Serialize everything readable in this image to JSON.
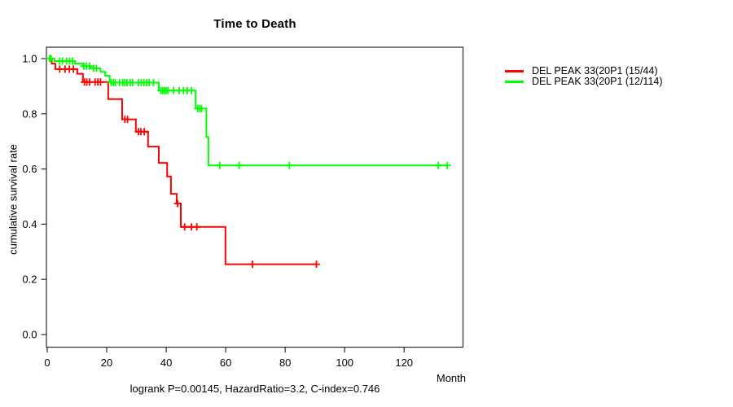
{
  "chart_data": {
    "type": "line",
    "kind": "kaplan-meier-step",
    "title": "Time to Death",
    "xlabel": "Month",
    "ylabel": "cumulative survival rate",
    "footnote": "logrank P=0.00145, HazardRatio=3.2, C-index=0.746",
    "xtick_values": [
      0,
      20,
      40,
      60,
      80,
      100,
      120
    ],
    "xtick_labels": [
      "0",
      "20",
      "40",
      "60",
      "80",
      "100",
      "120"
    ],
    "ytick_values": [
      0,
      0.2,
      0.4,
      0.6,
      0.8,
      1
    ],
    "ytick_labels": [
      "0.0",
      "0.2",
      "0.4",
      "0.6",
      "0.8",
      "1.0"
    ],
    "xlim": [
      0,
      140
    ],
    "ylim": [
      -0.04,
      1.03
    ],
    "grid": false,
    "legend_position": "right-top-outside",
    "axis_color": "#2b2b2b",
    "series": [
      {
        "name": "DEL PEAK 33(20P1 (15/44)",
        "color": "#ff0000",
        "steps": [
          [
            0,
            1.0
          ],
          [
            1.5,
            0.982
          ],
          [
            2.7,
            0.962
          ],
          [
            10.1,
            0.945
          ],
          [
            12,
            0.915
          ],
          [
            20.5,
            0.853
          ],
          [
            25.2,
            0.78
          ],
          [
            29.8,
            0.735
          ],
          [
            33.9,
            0.681
          ],
          [
            37.5,
            0.622
          ],
          [
            40.3,
            0.573
          ],
          [
            41.6,
            0.51
          ],
          [
            43.5,
            0.475
          ],
          [
            44.9,
            0.39
          ],
          [
            59.9,
            0.255
          ]
        ],
        "end_month": 90.5,
        "censor_months": [
          4.2,
          6.0,
          7.4,
          8.8,
          12.5,
          13.3,
          14.2,
          16.1,
          17.0,
          17.9,
          26.1,
          27.0,
          30.7,
          31.5,
          32.6,
          43.8,
          46.2,
          48.5,
          50.3,
          69.0,
          90.5
        ]
      },
      {
        "name": "DEL PEAK 33(20P1 (12/114)",
        "color": "#00ff00",
        "steps": [
          [
            0,
            1.0
          ],
          [
            2.4,
            0.991
          ],
          [
            9.2,
            0.982
          ],
          [
            12,
            0.973
          ],
          [
            14.7,
            0.965
          ],
          [
            17.9,
            0.952
          ],
          [
            19.5,
            0.938
          ],
          [
            21,
            0.913
          ],
          [
            37.5,
            0.884
          ],
          [
            49.9,
            0.819
          ],
          [
            53.5,
            0.716
          ],
          [
            54.2,
            0.613
          ]
        ],
        "end_month": 134.5,
        "censor_months": [
          0.8,
          1.3,
          4.2,
          5.1,
          6.5,
          7.5,
          8.5,
          12.3,
          13.2,
          14.2,
          15.6,
          16.5,
          21.5,
          22.3,
          22.9,
          24.3,
          25.4,
          26.1,
          26.8,
          27.9,
          28.7,
          30.7,
          31.6,
          32.5,
          33.4,
          34.3,
          35.7,
          38.2,
          38.8,
          39.4,
          40.0,
          40.6,
          42.5,
          44.4,
          45.8,
          47.1,
          48.5,
          50.6,
          51.3,
          51.9,
          58.0,
          64.5,
          81.4,
          131.5,
          134.5
        ]
      }
    ]
  }
}
